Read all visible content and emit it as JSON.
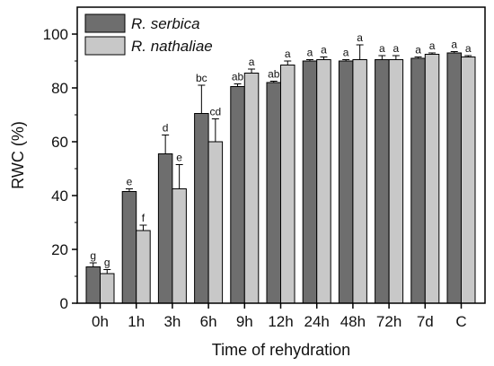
{
  "chart_data": {
    "type": "bar",
    "xlabel": "Time of rehydration",
    "ylabel": "RWC (%)",
    "ylim": [
      0,
      110
    ],
    "yticks": [
      0,
      20,
      40,
      60,
      80,
      100
    ],
    "categories": [
      "0h",
      "1h",
      "3h",
      "6h",
      "9h",
      "12h",
      "24h",
      "48h",
      "72h",
      "7d",
      "C"
    ],
    "legend_position": "top-left",
    "grid": false,
    "series": [
      {
        "name": "R. serbica",
        "color": "#6e6e6e",
        "values": [
          13.5,
          41.5,
          55.5,
          70.5,
          80.5,
          82,
          90,
          90,
          90.5,
          91,
          93
        ],
        "errors": [
          1.5,
          1.0,
          7.0,
          10.5,
          1.0,
          0.5,
          0.5,
          0.5,
          1.5,
          0.5,
          0.5
        ],
        "letters": [
          "g",
          "e",
          "d",
          "bc",
          "ab",
          "ab",
          "a",
          "a",
          "a",
          "a",
          "a"
        ]
      },
      {
        "name": "R. nathaliae",
        "color": "#c8c8c8",
        "values": [
          11,
          27,
          42.5,
          60,
          85.5,
          88.5,
          90.5,
          90.5,
          90.5,
          92.5,
          91.5
        ],
        "errors": [
          1.5,
          2.0,
          9.0,
          8.5,
          1.5,
          1.5,
          1.0,
          5.5,
          1.5,
          0.5,
          0.5
        ],
        "letters": [
          "g",
          "f",
          "e",
          "cd",
          "a",
          "a",
          "a",
          "a",
          "a",
          "a",
          "a"
        ]
      }
    ]
  }
}
